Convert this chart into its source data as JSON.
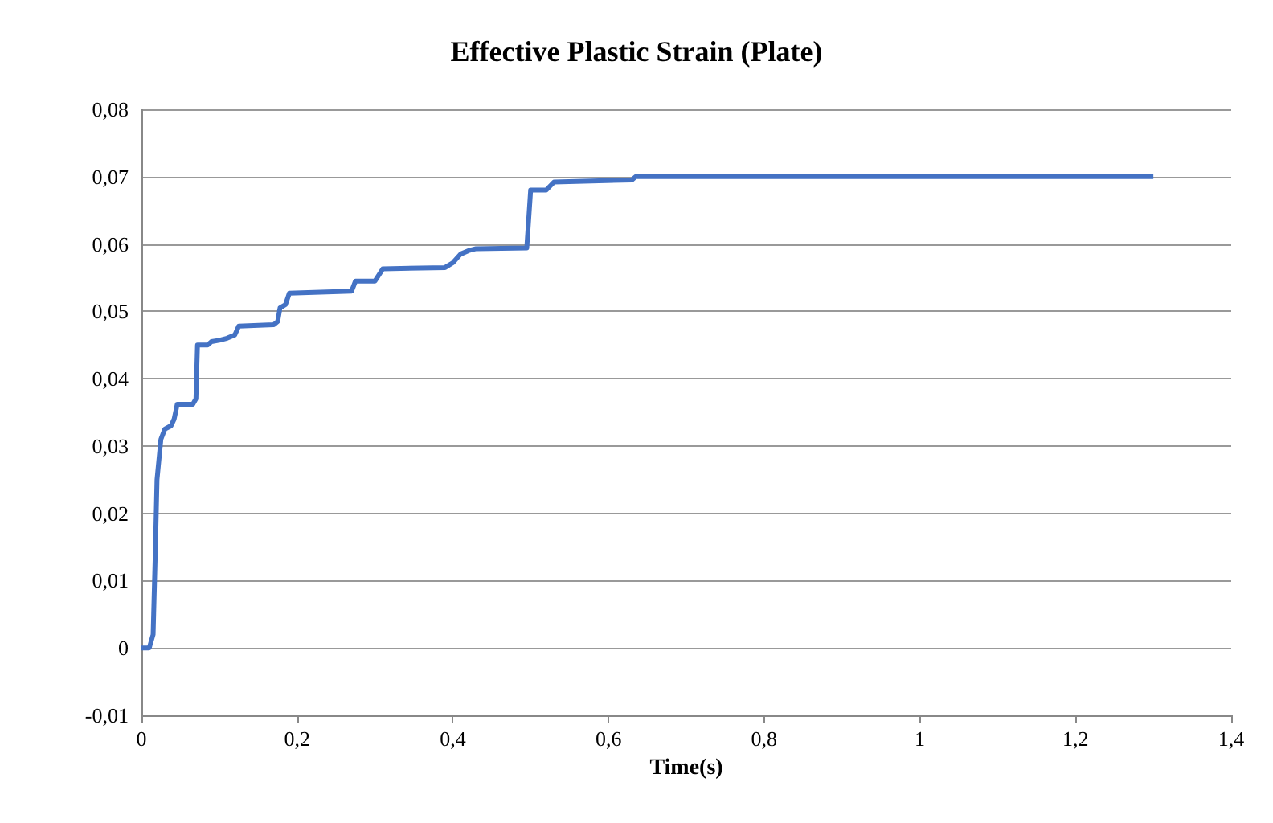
{
  "chart_data": {
    "type": "line",
    "title": "Effective Plastic Strain (Plate)",
    "xlabel": "Time(s)",
    "series": [
      {
        "color": "#4472c4",
        "x": [
          0,
          0.01,
          0.015,
          0.018,
          0.02,
          0.025,
          0.03,
          0.038,
          0.042,
          0.046,
          0.066,
          0.07,
          0.072,
          0.085,
          0.09,
          0.1,
          0.11,
          0.12,
          0.125,
          0.17,
          0.175,
          0.178,
          0.185,
          0.19,
          0.27,
          0.275,
          0.3,
          0.31,
          0.39,
          0.4,
          0.41,
          0.42,
          0.43,
          0.495,
          0.5,
          0.52,
          0.53,
          0.63,
          0.635,
          1.3
        ],
        "values": [
          0,
          0,
          0.002,
          0.015,
          0.025,
          0.031,
          0.0325,
          0.033,
          0.034,
          0.0362,
          0.0362,
          0.037,
          0.045,
          0.045,
          0.0455,
          0.0457,
          0.046,
          0.0465,
          0.0478,
          0.048,
          0.0485,
          0.0505,
          0.051,
          0.0527,
          0.053,
          0.0545,
          0.0545,
          0.0563,
          0.0565,
          0.0572,
          0.0585,
          0.059,
          0.0593,
          0.0594,
          0.068,
          0.068,
          0.0692,
          0.0695,
          0.07,
          0.07
        ]
      }
    ],
    "xlim": [
      0,
      1.4
    ],
    "xticks": [
      {
        "value": 0,
        "label": "0"
      },
      {
        "value": 0.2,
        "label": "0,2"
      },
      {
        "value": 0.4,
        "label": "0,4"
      },
      {
        "value": 0.6,
        "label": "0,6"
      },
      {
        "value": 0.8,
        "label": "0,8"
      },
      {
        "value": 1,
        "label": "1"
      },
      {
        "value": 1.2,
        "label": "1,2"
      },
      {
        "value": 1.4,
        "label": "1,4"
      }
    ],
    "ylim": [
      -0.01,
      0.08
    ],
    "yticks": [
      {
        "value": -0.01,
        "label": "-0,01"
      },
      {
        "value": 0,
        "label": "0"
      },
      {
        "value": 0.01,
        "label": "0,01"
      },
      {
        "value": 0.02,
        "label": "0,02"
      },
      {
        "value": 0.03,
        "label": "0,03"
      },
      {
        "value": 0.04,
        "label": "0,04"
      },
      {
        "value": 0.05,
        "label": "0,05"
      },
      {
        "value": 0.06,
        "label": "0,06"
      },
      {
        "value": 0.07,
        "label": "0,07"
      },
      {
        "value": 0.08,
        "label": "0,08"
      }
    ],
    "grid": "y",
    "marker": "none",
    "line_style": "solid"
  }
}
